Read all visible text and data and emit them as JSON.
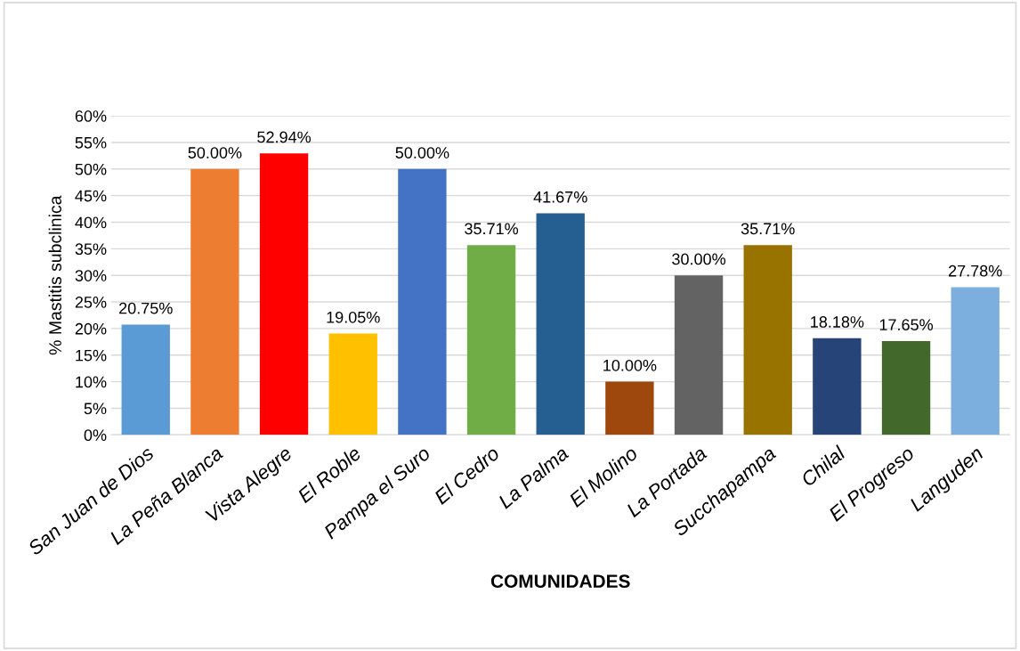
{
  "chart_data": {
    "type": "bar",
    "xlabel": "COMUNIDADES",
    "ylabel": "% Mastitis subclinica",
    "categories": [
      "San Juan de Dios",
      "La Peña Blanca",
      "Vista Alegre",
      "El Roble",
      "Pampa el Suro",
      "El Cedro",
      "La Palma",
      "El Molino",
      "La Portada",
      "Succhapampa",
      "Chilal",
      "El Progreso",
      "Languden"
    ],
    "values": [
      20.75,
      50.0,
      52.94,
      19.05,
      50.0,
      35.71,
      41.67,
      10.0,
      30.0,
      35.71,
      18.18,
      17.65,
      27.78
    ],
    "value_labels": [
      "20.75%",
      "50.00%",
      "52.94%",
      "19.05%",
      "50.00%",
      "35.71%",
      "41.67%",
      "10.00%",
      "30.00%",
      "35.71%",
      "18.18%",
      "17.65%",
      "27.78%"
    ],
    "colors": [
      "#5b9bd5",
      "#ed7d31",
      "#ff0000",
      "#ffc000",
      "#4472c4",
      "#70ad47",
      "#255e91",
      "#9e480e",
      "#636363",
      "#997300",
      "#264478",
      "#43682b",
      "#7cafdd"
    ],
    "ylim": [
      0,
      60
    ],
    "yticks": [
      {
        "value": 0,
        "label": "0%"
      },
      {
        "value": 5,
        "label": "5%"
      },
      {
        "value": 10,
        "label": "10%"
      },
      {
        "value": 15,
        "label": "15%"
      },
      {
        "value": 20,
        "label": "20%"
      },
      {
        "value": 25,
        "label": "25%"
      },
      {
        "value": 30,
        "label": "30%"
      },
      {
        "value": 35,
        "label": "35%"
      },
      {
        "value": 40,
        "label": "40%"
      },
      {
        "value": 45,
        "label": "45%"
      },
      {
        "value": 50,
        "label": "50%"
      },
      {
        "value": 55,
        "label": "55%"
      },
      {
        "value": 60,
        "label": "60%"
      }
    ],
    "grid": "y"
  }
}
